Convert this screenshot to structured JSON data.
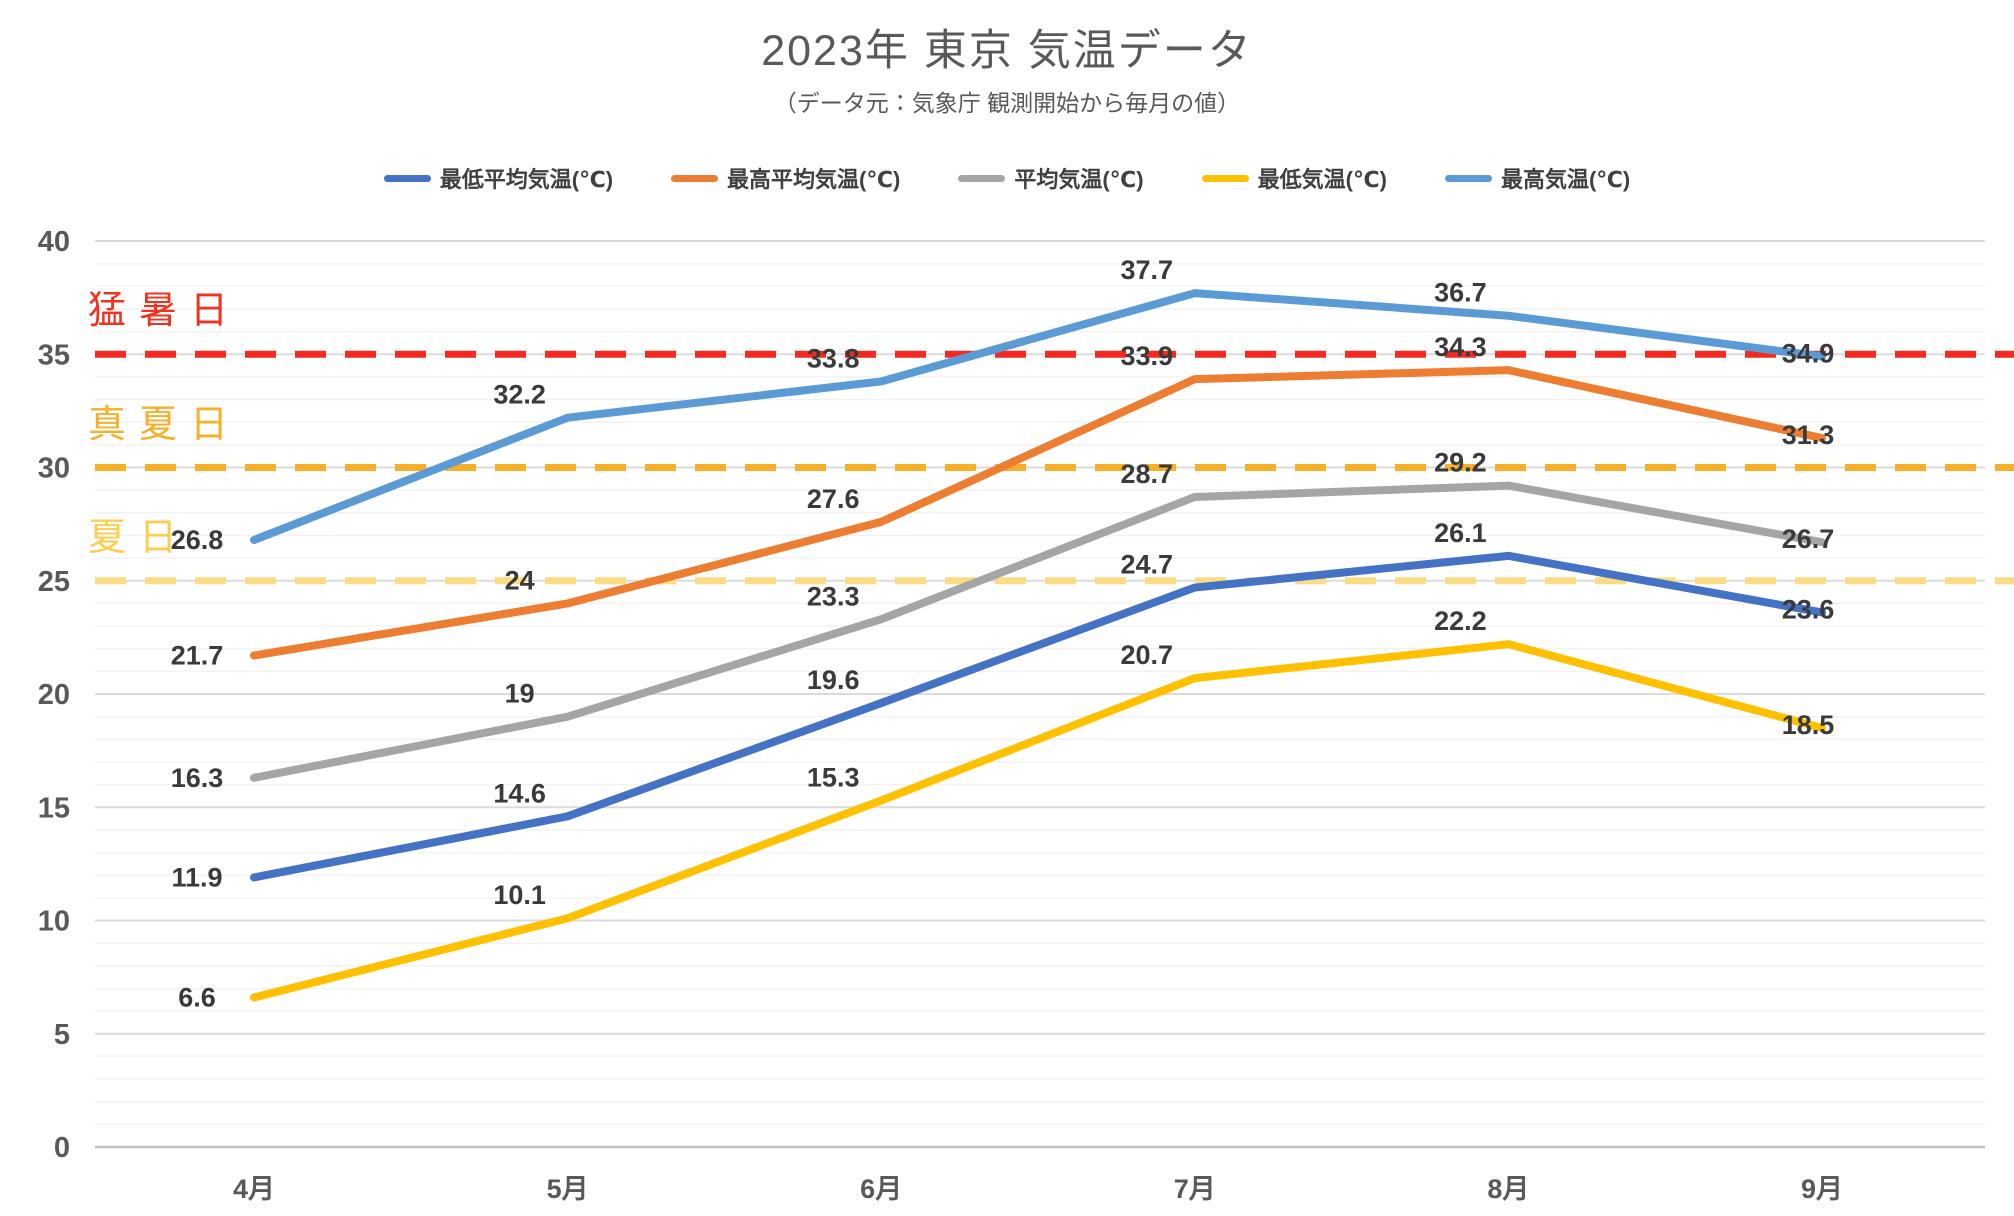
{
  "title": "2023年 東京 気温データ",
  "subtitle": "（データ元：気象庁 観測開始から毎月の値）",
  "chart_data": {
    "type": "line",
    "title": "2023年 東京 気温データ",
    "subtitle": "（データ元：気象庁 観測開始から毎月の値）",
    "categories": [
      "4月",
      "5月",
      "6月",
      "7月",
      "8月",
      "9月"
    ],
    "series": [
      {
        "name": "最低平均気温(℃)",
        "color": "#4472C4",
        "values": [
          11.9,
          14.6,
          19.6,
          24.7,
          26.1,
          23.6
        ]
      },
      {
        "name": "最高平均気温(℃)",
        "color": "#ED7D31",
        "values": [
          21.7,
          24,
          27.6,
          33.9,
          34.3,
          31.3
        ]
      },
      {
        "name": "平均気温(℃)",
        "color": "#A5A5A5",
        "values": [
          16.3,
          19,
          23.3,
          28.7,
          29.2,
          26.7
        ]
      },
      {
        "name": "最低気温(℃)",
        "color": "#FFC000",
        "values": [
          6.6,
          10.1,
          15.3,
          20.7,
          22.2,
          18.5
        ]
      },
      {
        "name": "最高気温(℃)",
        "color": "#5B9BD5",
        "values": [
          26.8,
          32.2,
          33.8,
          37.7,
          36.7,
          34.9
        ]
      }
    ],
    "reference_lines": [
      {
        "label": "猛暑日",
        "value": 35,
        "line_color": "#F42A20",
        "label_color": "#F4301F"
      },
      {
        "label": "真夏日",
        "value": 30,
        "line_color": "#F5AF28",
        "label_color": "#F5AF28"
      },
      {
        "label": "夏日",
        "value": 25,
        "line_color": "#FBDC82",
        "label_color": "#FCCE4F"
      }
    ],
    "y_ticks": [
      0,
      5,
      10,
      15,
      20,
      25,
      30,
      35,
      40
    ],
    "ylim": [
      0,
      40
    ],
    "grid": {
      "minor_step": 1,
      "major_step": 5,
      "on": true
    },
    "legend_position": "top"
  }
}
